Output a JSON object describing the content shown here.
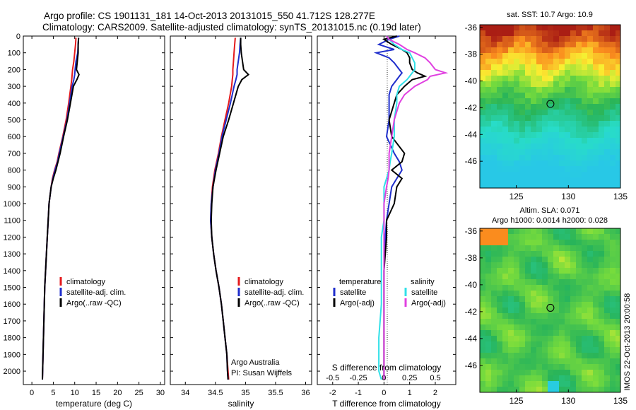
{
  "title_line1": "Argo profile: CS 1901131_181 14-Oct-2013 20131015_550 41.712S 128.277E",
  "title_line2": "Climatology: CARS2009. Satellite-adjusted climatology: synTS_20131015.nc (0.19d later)",
  "colors": {
    "climatology": "#e41a1c",
    "satellite": "#1f2ecc",
    "argo": "#000000",
    "sal_satellite": "#30e0e8",
    "sal_argo": "#e040e0"
  },
  "chart_data": [
    {
      "type": "line",
      "xlabel": "temperature (deg C)",
      "ylabel": "",
      "xlim": [
        -2,
        31
      ],
      "ylim": [
        2080,
        0
      ],
      "xticks": [
        0,
        5,
        10,
        15,
        20,
        25,
        30
      ],
      "yticks": [
        0,
        100,
        200,
        300,
        400,
        500,
        600,
        700,
        800,
        900,
        1000,
        1100,
        1200,
        1300,
        1400,
        1500,
        1600,
        1700,
        1800,
        1900,
        2000
      ],
      "depth": [
        10,
        50,
        100,
        150,
        200,
        230,
        260,
        300,
        400,
        500,
        600,
        700,
        750,
        800,
        850,
        900,
        1000,
        1100,
        1200,
        1300,
        1400,
        1500,
        1600,
        1700,
        1800,
        1900,
        2000,
        2050
      ],
      "series": [
        {
          "name": "climatology",
          "values": [
            10.3,
            10.2,
            10.0,
            9.8,
            9.5,
            9.4,
            9.3,
            9.1,
            8.6,
            8.0,
            7.2,
            6.3,
            5.9,
            5.3,
            4.8,
            4.5,
            4.0,
            3.8,
            3.6,
            3.4,
            3.2,
            3.0,
            2.9,
            2.8,
            2.7,
            2.6,
            2.5,
            2.45
          ]
        },
        {
          "name": "satellite-adj. clim.",
          "values": [
            10.9,
            10.8,
            10.7,
            10.3,
            10.1,
            10.0,
            9.8,
            9.4,
            8.8,
            8.2,
            7.3,
            6.4,
            6.0,
            5.4,
            4.9,
            4.5,
            4.0,
            3.8,
            3.6,
            3.4,
            3.2,
            3.0,
            2.9,
            2.8,
            2.7,
            2.6,
            2.5,
            2.45
          ]
        },
        {
          "name": "Argo(..raw -QC)",
          "values": [
            10.9,
            10.8,
            10.8,
            10.6,
            10.4,
            11.0,
            10.5,
            9.7,
            9.0,
            8.3,
            7.4,
            6.6,
            6.1,
            5.6,
            5.0,
            4.5,
            4.0,
            3.8,
            3.6,
            3.4,
            3.2,
            3.0,
            2.9,
            2.8,
            2.7,
            2.6,
            2.5,
            2.45
          ]
        }
      ],
      "legend": [
        "climatology",
        "satellite-adj. clim.",
        "Argo(..raw -QC)"
      ]
    },
    {
      "type": "line",
      "xlabel": "salinity",
      "xlim": [
        33.75,
        36.1
      ],
      "ylim": [
        2080,
        0
      ],
      "xticks": [
        34,
        34.5,
        35,
        35.5,
        36
      ],
      "xticklabels": [
        "34",
        "34.5",
        "35",
        "35.5",
        "36"
      ],
      "depth": [
        10,
        50,
        100,
        150,
        200,
        230,
        260,
        300,
        400,
        500,
        600,
        700,
        800,
        900,
        1000,
        1100,
        1200,
        1300,
        1400,
        1500,
        1600,
        1700,
        1800,
        1900,
        2000,
        2050
      ],
      "series": [
        {
          "name": "climatology",
          "values": [
            34.83,
            34.82,
            34.81,
            34.8,
            34.79,
            34.79,
            34.78,
            34.77,
            34.72,
            34.66,
            34.6,
            34.55,
            34.49,
            34.45,
            34.43,
            34.42,
            34.44,
            34.47,
            34.51,
            34.56,
            34.6,
            34.63,
            34.66,
            34.69,
            34.71,
            34.72
          ]
        },
        {
          "name": "satellite-adj. clim.",
          "values": [
            34.92,
            34.91,
            34.9,
            34.88,
            34.86,
            34.86,
            34.84,
            34.81,
            34.75,
            34.68,
            34.61,
            34.56,
            34.5,
            34.46,
            34.43,
            34.42,
            34.44,
            34.47,
            34.51,
            34.56,
            34.6,
            34.63,
            34.66,
            34.69,
            34.7,
            34.71
          ]
        },
        {
          "name": "Argo(..raw -QC)",
          "values": [
            34.92,
            34.92,
            34.93,
            34.95,
            34.97,
            35.05,
            34.94,
            34.88,
            34.8,
            34.72,
            34.63,
            34.57,
            34.51,
            34.46,
            34.44,
            34.43,
            34.44,
            34.47,
            34.51,
            34.56,
            34.6,
            34.63,
            34.66,
            34.69,
            34.7,
            34.71
          ]
        }
      ],
      "legend": [
        "climatology",
        "satellite-adj. clim.",
        "Argo(..raw -QC)"
      ],
      "annotation": [
        "Argo Australia",
        "PI: Susan Wijffels"
      ]
    },
    {
      "type": "line",
      "xlabel": "T difference from climatology",
      "top_axis_label": "S difference from climatology",
      "xlim": [
        -2.6,
        2.8
      ],
      "ylim": [
        2080,
        0
      ],
      "xticks": [
        -2,
        -1,
        0,
        1,
        2
      ],
      "top_ticks": [
        -0.5,
        -0.25,
        0,
        0.25,
        0.5
      ],
      "top_ticklabels": [
        "-0.5",
        "-0.25",
        "0",
        "0.25",
        "0.5"
      ],
      "depth": [
        0,
        20,
        50,
        80,
        100,
        130,
        160,
        200,
        220,
        240,
        260,
        300,
        350,
        400,
        500,
        600,
        700,
        750,
        800,
        850,
        900,
        1000,
        1100,
        1200,
        1400,
        1600,
        1800,
        2000,
        2050
      ],
      "series": [
        {
          "name": "temperature satellite",
          "values": [
            0.6,
            0.2,
            -0.2,
            0.4,
            -0.3,
            0.2,
            0.4,
            0.6,
            0.7,
            0.6,
            0.5,
            0.3,
            0.2,
            0.2,
            0.2,
            0.1,
            0.4,
            0.6,
            0.7,
            0.5,
            0.3,
            0.2,
            0.1,
            0.05,
            0.0,
            0.0,
            0.0,
            0.0,
            0.0
          ]
        },
        {
          "name": "temperature Argo(-adj)",
          "values": [
            0.5,
            0.0,
            0.3,
            0.7,
            0.9,
            1.0,
            1.0,
            1.1,
            1.3,
            1.6,
            1.1,
            0.8,
            0.5,
            0.4,
            0.2,
            0.3,
            0.8,
            0.7,
            0.3,
            0.7,
            0.5,
            0.4,
            0.1,
            0.1,
            0.0,
            0.0,
            0.0,
            0.0,
            0.0
          ]
        },
        {
          "name": "salinity satellite",
          "values": [
            0.05,
            0.1,
            0.2,
            0.35,
            0.5,
            0.55,
            0.6,
            0.6,
            0.55,
            0.5,
            0.45,
            0.3,
            0.25,
            0.25,
            0.2,
            0.2,
            0.15,
            0.12,
            0.1,
            0.05,
            0.0,
            0.0,
            0.0,
            -0.05,
            -0.05,
            -0.05,
            -0.1,
            -0.1,
            -0.05
          ]
        },
        {
          "name": "salinity Argo(-adj)",
          "values": [
            0.05,
            0.1,
            0.3,
            0.45,
            0.6,
            0.8,
            0.9,
            1.0,
            1.2,
            0.9,
            0.85,
            0.6,
            0.4,
            0.3,
            0.2,
            0.15,
            0.1,
            0.1,
            0.1,
            0.08,
            0.05,
            0.0,
            0.0,
            0.0,
            0.0,
            0.0,
            0.0,
            0.0,
            0.0
          ]
        }
      ],
      "legend_temperature_title": "temperature",
      "legend_salinity_title": "salinity",
      "legend_items": [
        "satellite",
        "Argo(-adj)"
      ]
    },
    {
      "type": "heatmap",
      "title": "sat. SST: 10.7  Argo: 10.9",
      "xlim": [
        121.5,
        135
      ],
      "ylim": [
        -48,
        -35.8
      ],
      "xticks": [
        125,
        130,
        135
      ],
      "yticks": [
        -36,
        -38,
        -40,
        -42,
        -44,
        -46
      ],
      "marker": [
        128.277,
        -41.712
      ]
    },
    {
      "type": "heatmap",
      "title": "Altim. SLA: 0.071",
      "subtitle": "Argo h1000: 0.0014  h2000: 0.028",
      "xlim": [
        121.5,
        135
      ],
      "ylim": [
        -48,
        -35.8
      ],
      "xticks": [
        125,
        130,
        135
      ],
      "yticks": [
        -36,
        -38,
        -40,
        -42,
        -44,
        -46
      ],
      "marker": [
        128.277,
        -41.712
      ]
    }
  ],
  "side_label": "IMOS 22-Oct-2013 20:00:58"
}
